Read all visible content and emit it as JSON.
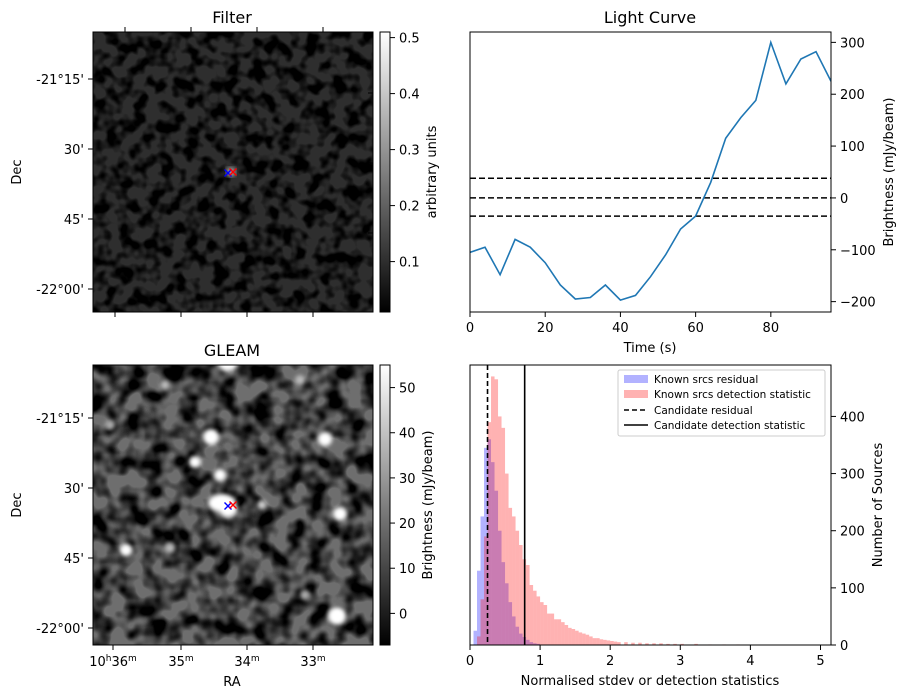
{
  "filter_panel": {
    "title": "Filter",
    "ylabel": "Dec",
    "dec_ticks": [
      "-21°15'",
      "30'",
      "45'",
      "-22°00'"
    ],
    "colorbar": {
      "label": "arbitrary units",
      "range": [
        0.01,
        0.51
      ],
      "ticks": [
        "0.1",
        "0.2",
        "0.3",
        "0.4",
        "0.5"
      ]
    }
  },
  "gleam_panel": {
    "title": "GLEAM",
    "ylabel": "Dec",
    "xlabel": "RA",
    "dec_ticks": [
      "-21°15'",
      "30'",
      "45'",
      "-22°00'"
    ],
    "ra_ticks": [
      {
        "main": "10",
        "h": "h",
        "min": "36",
        "m": "m"
      },
      {
        "main": "35",
        "h": "",
        "min": "",
        "m": "m"
      },
      {
        "main": "34",
        "h": "",
        "min": "",
        "m": "m"
      },
      {
        "main": "33",
        "h": "",
        "min": "",
        "m": "m"
      }
    ],
    "colorbar": {
      "label": "Brightness (mJy/beam)",
      "range": [
        -7,
        55
      ],
      "ticks": [
        "0",
        "10",
        "20",
        "30",
        "40",
        "50"
      ]
    }
  },
  "markers": {
    "candidate_color": "#0000ff",
    "known_color": "#ff0000",
    "symbol": "x"
  },
  "chart_data": [
    {
      "type": "line",
      "title": "Light Curve",
      "xlabel": "Time (s)",
      "ylabel": "Brightness (mJy/beam)",
      "xlim": [
        0,
        96
      ],
      "ylim": [
        -220,
        320
      ],
      "xticks": [
        0,
        20,
        40,
        60,
        80
      ],
      "yticks": [
        -200,
        -100,
        0,
        100,
        200,
        300
      ],
      "line_color": "#1f77b4",
      "x": [
        0,
        4,
        8,
        12,
        16,
        20,
        24,
        28,
        32,
        36,
        40,
        44,
        48,
        52,
        56,
        60,
        64,
        68,
        72,
        76,
        80,
        84,
        88,
        92,
        96
      ],
      "y": [
        -105,
        -95,
        -148,
        -80,
        -95,
        -125,
        -168,
        -195,
        -192,
        -168,
        -197,
        -188,
        -152,
        -110,
        -60,
        -35,
        30,
        115,
        155,
        188,
        300,
        220,
        268,
        282,
        225
      ],
      "hlines": [
        {
          "y": 38,
          "style": "dashed"
        },
        {
          "y": 0,
          "style": "dashed"
        },
        {
          "y": -35,
          "style": "dashed"
        }
      ]
    },
    {
      "type": "bar",
      "xlabel": "Normalised stdev or detection statistics",
      "ylabel": "Number of Sources",
      "xlim": [
        0,
        5.15
      ],
      "ylim": [
        0,
        490
      ],
      "xticks": [
        0,
        1,
        2,
        3,
        4,
        5
      ],
      "yticks": [
        0,
        100,
        200,
        300,
        400
      ],
      "legend_placement": "top-right",
      "bin_width": 0.05,
      "series": [
        {
          "name": "Known srcs residual",
          "color": "#0000ff",
          "alpha": 0.3,
          "x0": [
            0.05,
            0.1,
            0.15,
            0.2,
            0.25,
            0.3,
            0.35,
            0.4,
            0.45,
            0.5,
            0.55,
            0.6,
            0.65,
            0.7,
            0.75,
            0.8,
            0.85,
            0.9,
            0.95
          ],
          "values": [
            25,
            130,
            225,
            345,
            360,
            320,
            270,
            200,
            145,
            108,
            75,
            50,
            32,
            20,
            14,
            9,
            5,
            3,
            2
          ]
        },
        {
          "name": "Known srcs detection statistic",
          "color": "#ff0000",
          "alpha": 0.3,
          "x0": [
            0.1,
            0.15,
            0.2,
            0.25,
            0.3,
            0.35,
            0.4,
            0.45,
            0.5,
            0.55,
            0.6,
            0.65,
            0.7,
            0.75,
            0.8,
            0.85,
            0.9,
            0.95,
            1.0,
            1.05,
            1.1,
            1.15,
            1.2,
            1.25,
            1.3,
            1.35,
            1.4,
            1.45,
            1.5,
            1.55,
            1.6,
            1.65,
            1.7,
            1.75,
            1.8,
            1.85,
            1.9,
            1.95,
            2.0,
            2.05,
            2.1,
            2.2,
            2.3,
            2.4,
            2.5,
            2.6,
            2.7,
            2.8,
            2.9,
            3.0,
            3.2,
            3.4,
            3.6,
            3.8
          ],
          "values": [
            15,
            80,
            190,
            390,
            470,
            465,
            400,
            380,
            300,
            240,
            225,
            200,
            175,
            150,
            140,
            105,
            95,
            85,
            75,
            70,
            55,
            55,
            45,
            45,
            40,
            35,
            30,
            28,
            25,
            22,
            20,
            18,
            15,
            12,
            12,
            10,
            9,
            8,
            7,
            6,
            5,
            5,
            4,
            4,
            3,
            3,
            3,
            2,
            2,
            2,
            2,
            1,
            1,
            1
          ]
        },
        {
          "name": "Candidate residual",
          "type": "vline",
          "x": 0.25,
          "style": "dashed",
          "color": "#000000"
        },
        {
          "name": "Candidate detection statistic",
          "type": "vline",
          "x": 0.78,
          "style": "solid",
          "color": "#000000"
        }
      ]
    }
  ]
}
